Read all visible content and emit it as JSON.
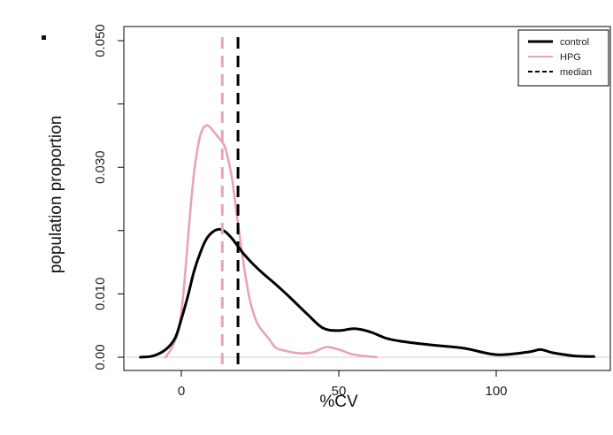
{
  "chart_data": {
    "type": "line",
    "title": "",
    "xlabel": "%CV",
    "ylabel": "population proportion",
    "xlim": [
      -12,
      132
    ],
    "ylim": [
      0,
      0.052
    ],
    "x_ticks": [
      0,
      50,
      100
    ],
    "x_tick_labels": [
      "0",
      "50",
      "100"
    ],
    "y_ticks": [
      0.0,
      0.01,
      0.02,
      0.03,
      0.04,
      0.05
    ],
    "y_tick_labels": [
      "0.00",
      "0.010",
      "",
      "0.030",
      "",
      "0.050"
    ],
    "grid": false,
    "legend_position": "top-right",
    "series": [
      {
        "name": "control",
        "color": "#000000",
        "style": "solid",
        "x": [
          -13,
          -9,
          -5,
          -2,
          0,
          2,
          4,
          6,
          8,
          10,
          12,
          14,
          16,
          18,
          20,
          23,
          26,
          30,
          35,
          40,
          45,
          50,
          55,
          60,
          65,
          70,
          80,
          90,
          100,
          110,
          114,
          118,
          125,
          131
        ],
        "y": [
          0.0,
          0.0002,
          0.0012,
          0.003,
          0.006,
          0.0095,
          0.0135,
          0.0165,
          0.0187,
          0.0198,
          0.0202,
          0.0198,
          0.0188,
          0.0175,
          0.0162,
          0.0146,
          0.0132,
          0.0115,
          0.0092,
          0.0068,
          0.0046,
          0.0042,
          0.0045,
          0.004,
          0.003,
          0.0025,
          0.0019,
          0.0014,
          0.0004,
          0.0008,
          0.0012,
          0.0007,
          0.0002,
          0.0001
        ]
      },
      {
        "name": "HPG",
        "color": "#e8a4b4",
        "style": "solid",
        "x": [
          -5,
          -3,
          -1,
          0,
          1,
          2,
          3,
          4,
          5,
          6,
          7,
          8,
          9,
          10,
          11,
          12,
          13,
          14,
          15,
          16,
          17,
          18,
          19,
          20,
          21,
          22,
          24,
          26,
          28,
          30,
          34,
          38,
          42,
          46,
          50,
          54,
          58,
          62
        ],
        "y": [
          0.0,
          0.0015,
          0.004,
          0.007,
          0.012,
          0.018,
          0.024,
          0.029,
          0.0325,
          0.035,
          0.0362,
          0.0366,
          0.0364,
          0.0358,
          0.0352,
          0.0346,
          0.034,
          0.033,
          0.031,
          0.0285,
          0.025,
          0.021,
          0.0175,
          0.014,
          0.011,
          0.0085,
          0.0055,
          0.004,
          0.0028,
          0.0015,
          0.0009,
          0.0006,
          0.0008,
          0.0016,
          0.0012,
          0.0005,
          0.0002,
          0.0
        ]
      }
    ],
    "medians": [
      {
        "series": "HPG",
        "x": 13.0,
        "color": "#e8a4b4"
      },
      {
        "series": "control",
        "x": 18.0,
        "color": "#000000"
      }
    ],
    "legend": [
      {
        "label": "control",
        "color": "#000000",
        "style": "solid"
      },
      {
        "label": "HPG",
        "color": "#e8a4b4",
        "style": "solid"
      },
      {
        "label": "median",
        "color": "#000000",
        "style": "dashed"
      }
    ]
  }
}
